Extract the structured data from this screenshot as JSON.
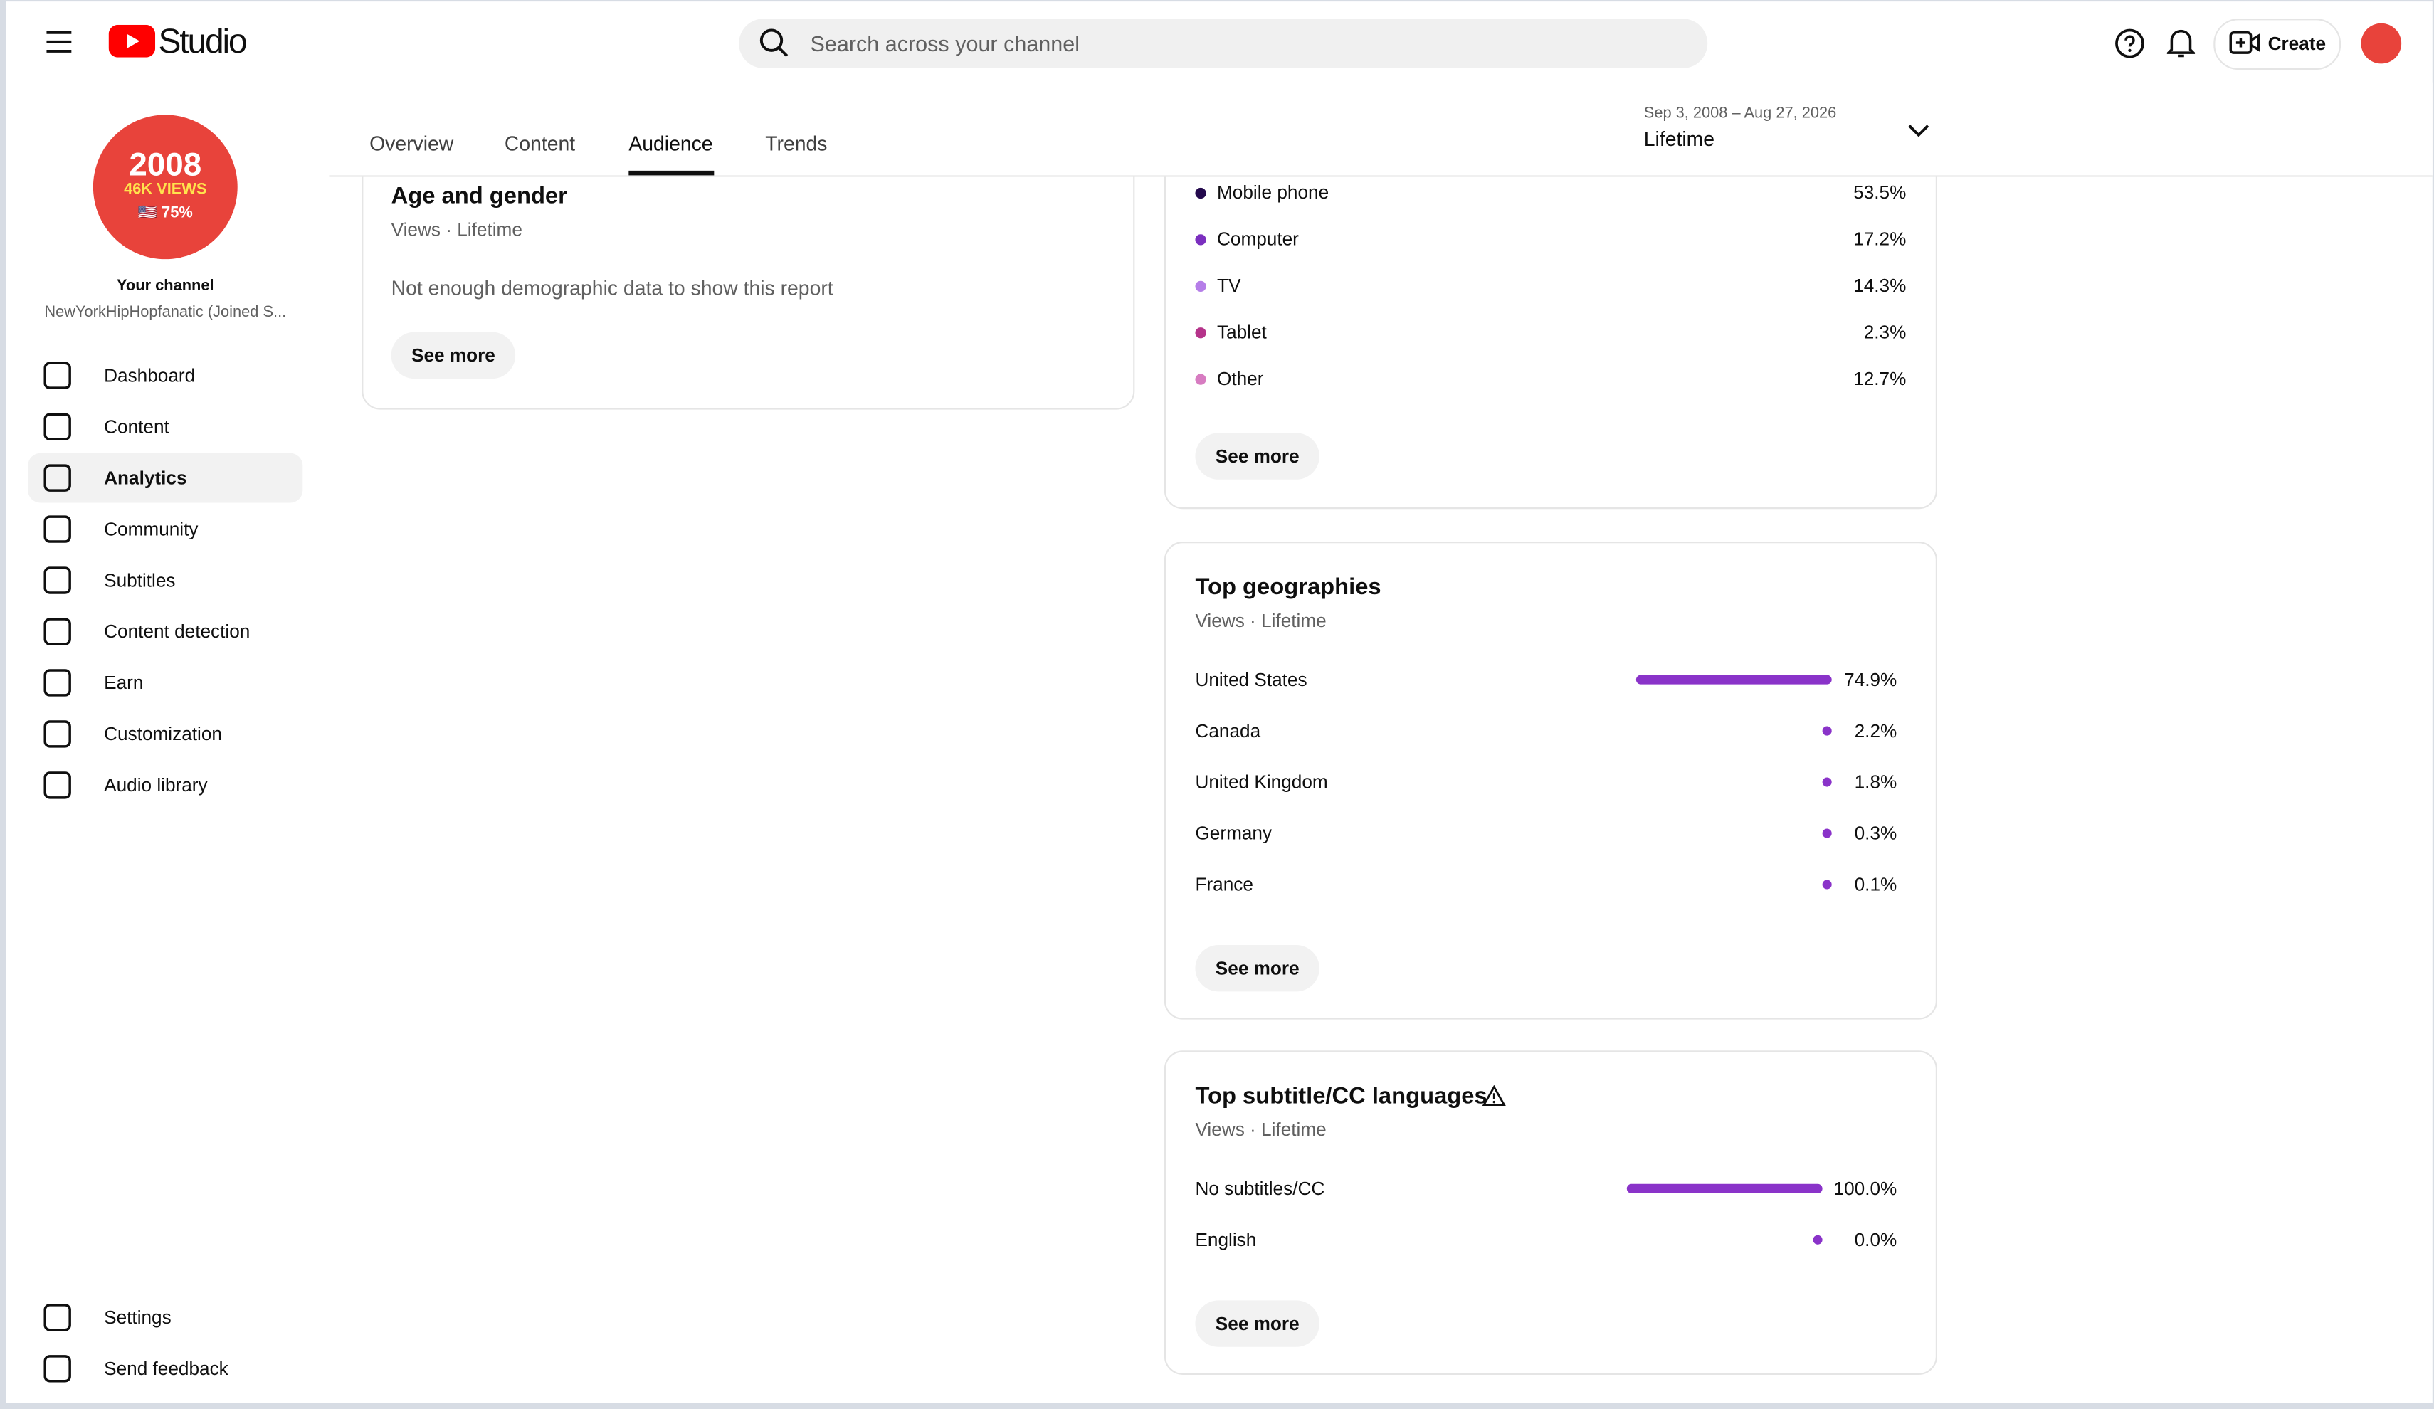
{
  "header": {
    "logo": "Studio",
    "search_placeholder": "Search across your channel",
    "create": "Create"
  },
  "channel": {
    "avatar_lines": [
      "2008",
      "46K VIEWS",
      "🇺🇸 75%"
    ],
    "label": "Your channel",
    "name": "NewYorkHipHopfanatic (Joined S..."
  },
  "nav": [
    "Dashboard",
    "Content",
    "Analytics",
    "Community",
    "Subtitles",
    "Content detection",
    "Earn",
    "Customization",
    "Audio library"
  ],
  "nav_bottom": [
    "Settings",
    "Send feedback"
  ],
  "tabs": [
    "Overview",
    "Content",
    "Audience",
    "Trends"
  ],
  "date_range": {
    "range": "Sep 3, 2008 – Aug 27, 2026",
    "label": "Lifetime"
  },
  "age_gender": {
    "title": "Age and gender",
    "subtitle": "Views · Lifetime",
    "message": "Not enough demographic data to show this report",
    "button": "See more"
  },
  "devices": {
    "items": [
      {
        "name": "Mobile phone",
        "value": "53.5%",
        "color": "#240a4d"
      },
      {
        "name": "Computer",
        "value": "17.2%",
        "color": "#7b2fbf"
      },
      {
        "name": "TV",
        "value": "14.3%",
        "color": "#b57ee8"
      },
      {
        "name": "Tablet",
        "value": "2.3%",
        "color": "#b5338a"
      },
      {
        "name": "Other",
        "value": "12.7%",
        "color": "#d77cc1"
      }
    ],
    "button": "See more"
  },
  "geographies": {
    "title": "Top geographies",
    "subtitle": "Views · Lifetime",
    "color": "#8a33c9",
    "items": [
      {
        "name": "United States",
        "value": 74.9,
        "value_label": "74.9%"
      },
      {
        "name": "Canada",
        "value": 2.2,
        "value_label": "2.2%"
      },
      {
        "name": "United Kingdom",
        "value": 1.8,
        "value_label": "1.8%"
      },
      {
        "name": "Germany",
        "value": 0.3,
        "value_label": "0.3%"
      },
      {
        "name": "France",
        "value": 0.1,
        "value_label": "0.1%"
      }
    ],
    "button": "See more"
  },
  "subtitle_languages": {
    "title": "Top subtitle/CC languages",
    "subtitle": "Views · Lifetime",
    "color": "#8a33c9",
    "items": [
      {
        "name": "No subtitles/CC",
        "value": 100.0,
        "value_label": "100.0%"
      },
      {
        "name": "English",
        "value": 0.0,
        "value_label": "0.0%"
      }
    ],
    "button": "See more"
  }
}
